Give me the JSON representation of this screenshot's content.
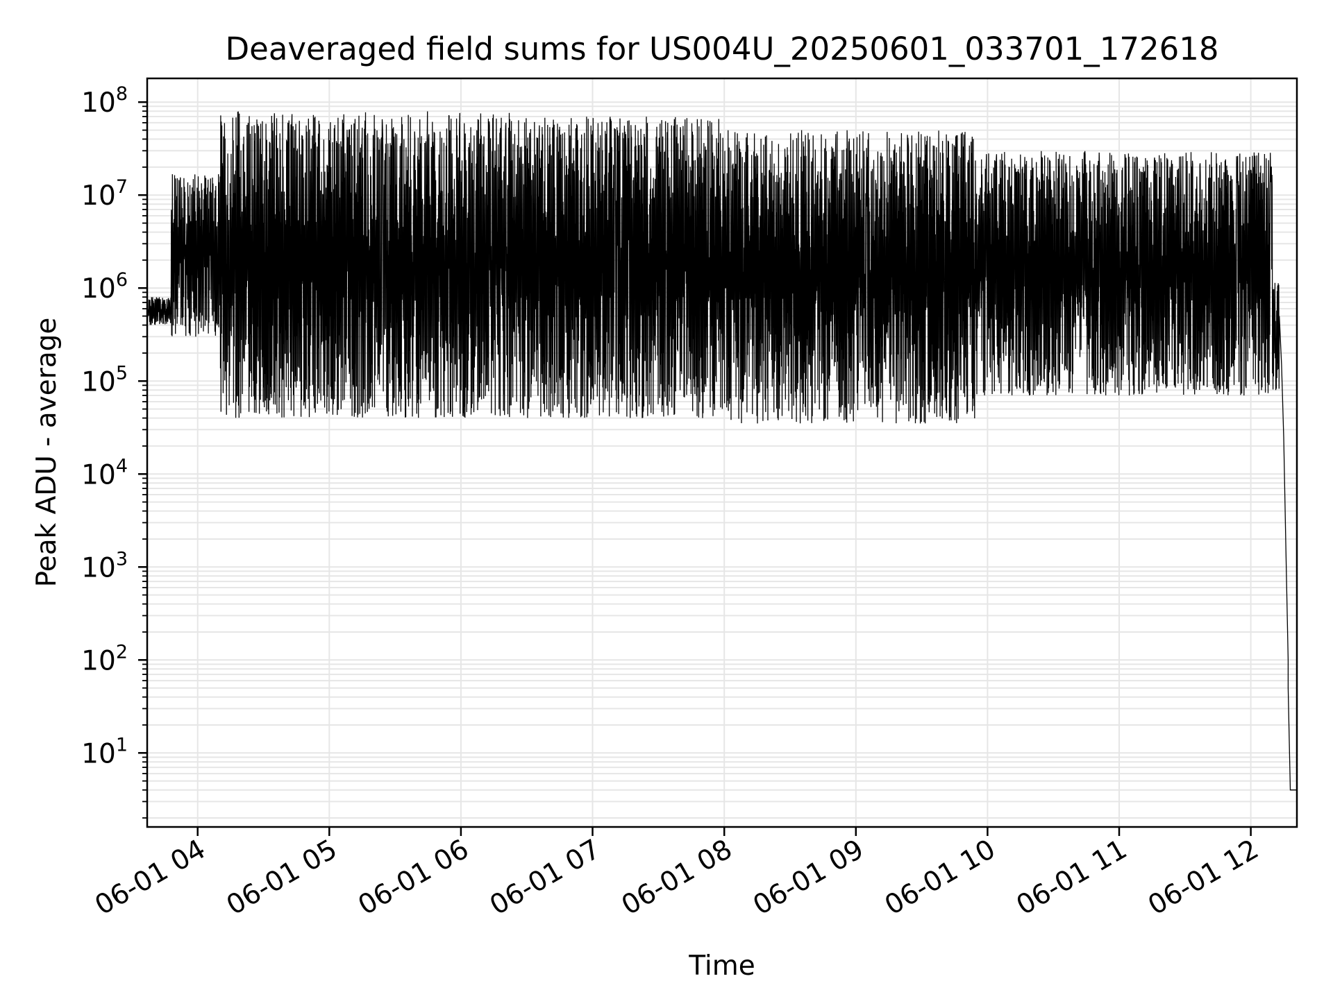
{
  "chart_data": {
    "type": "line",
    "title": "Deaveraged field sums for US004U_20250601_033701_172618",
    "xlabel": "Time",
    "ylabel": "Peak ADU - average",
    "x_range": [
      "06-01 03:37",
      "06-01 12:21"
    ],
    "x_ticks": [
      "06-01 04",
      "06-01 05",
      "06-01 06",
      "06-01 07",
      "06-01 08",
      "06-01 09",
      "06-01 10",
      "06-01 11",
      "06-01 12"
    ],
    "y_scale": "log",
    "ylim": [
      1.6,
      180000000
    ],
    "y_ticks": [
      {
        "base": "10",
        "exp": "1",
        "value": 10
      },
      {
        "base": "10",
        "exp": "2",
        "value": 100
      },
      {
        "base": "10",
        "exp": "3",
        "value": 1000
      },
      {
        "base": "10",
        "exp": "4",
        "value": 10000
      },
      {
        "base": "10",
        "exp": "5",
        "value": 100000
      },
      {
        "base": "10",
        "exp": "6",
        "value": 1000000
      },
      {
        "base": "10",
        "exp": "7",
        "value": 10000000
      },
      {
        "base": "10",
        "exp": "8",
        "value": 100000000
      }
    ],
    "grid": "major and minor",
    "line_color": "#000000",
    "segments": [
      {
        "start": "06-01 03:37",
        "end": "06-01 03:48",
        "low": 400000,
        "high": 800000
      },
      {
        "start": "06-01 03:48",
        "end": "06-01 04:10",
        "low": 300000,
        "high": 17000000
      },
      {
        "start": "06-01 04:10",
        "end": "06-01 06:30",
        "low": 40000,
        "high": 80000000
      },
      {
        "start": "06-01 06:30",
        "end": "06-01 08:00",
        "low": 40000,
        "high": 70000000
      },
      {
        "start": "06-01 08:00",
        "end": "06-01 09:55",
        "low": 35000,
        "high": 50000000
      },
      {
        "start": "06-01 09:55",
        "end": "06-01 12:10",
        "low": 70000,
        "high": 30000000
      },
      {
        "start": "06-01 12:10",
        "end": "06-01 12:13",
        "low": 80000,
        "high": 1200000
      }
    ],
    "points": [
      {
        "x": "06-01 12:13",
        "y": 500000
      },
      {
        "x": "06-01 12:14",
        "y": 150000
      },
      {
        "x": "06-01 12:15",
        "y": 25000
      },
      {
        "x": "06-01 12:16",
        "y": 1500
      },
      {
        "x": "06-01 12:17",
        "y": 100
      },
      {
        "x": "06-01 12:17",
        "y": 50
      },
      {
        "x": "06-01 12:18",
        "y": 4
      },
      {
        "x": "06-01 12:21",
        "y": 4
      }
    ]
  }
}
